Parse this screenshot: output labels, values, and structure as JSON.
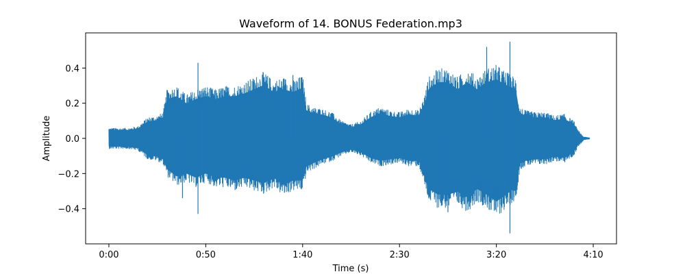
{
  "chart_data": {
    "type": "line",
    "title": "Waveform of 14. BONUS Federation.mp3",
    "xlabel": "Time (s)",
    "ylabel": "Amplitude",
    "xlim": [
      -12,
      262
    ],
    "ylim": [
      -0.6,
      0.6
    ],
    "grid": false,
    "x_ticks": [
      {
        "value": 0,
        "label": "0:00"
      },
      {
        "value": 50,
        "label": "0:50"
      },
      {
        "value": 100,
        "label": "1:40"
      },
      {
        "value": 150,
        "label": "2:30"
      },
      {
        "value": 200,
        "label": "3:20"
      },
      {
        "value": 250,
        "label": "4:10"
      }
    ],
    "y_ticks": [
      {
        "value": 0.4,
        "label": "0.4"
      },
      {
        "value": 0.2,
        "label": "0.2"
      },
      {
        "value": 0.0,
        "label": "0.0"
      },
      {
        "value": -0.2,
        "label": "−0.2"
      },
      {
        "value": -0.4,
        "label": "−0.4"
      }
    ],
    "series": [
      {
        "color": "#1f77b4",
        "x": [
          0,
          5,
          10,
          15,
          18,
          20,
          25,
          28,
          30,
          35,
          40,
          45,
          50,
          55,
          60,
          65,
          70,
          75,
          80,
          85,
          90,
          95,
          100,
          102,
          105,
          110,
          115,
          120,
          125,
          130,
          135,
          140,
          145,
          150,
          155,
          160,
          163,
          165,
          170,
          175,
          180,
          185,
          190,
          195,
          200,
          205,
          210,
          212,
          215,
          220,
          225,
          230,
          235,
          240,
          242,
          245,
          248
        ],
        "upper": [
          0.06,
          0.06,
          0.06,
          0.07,
          0.1,
          0.12,
          0.13,
          0.15,
          0.28,
          0.3,
          0.25,
          0.28,
          0.3,
          0.28,
          0.3,
          0.3,
          0.32,
          0.35,
          0.38,
          0.33,
          0.35,
          0.33,
          0.36,
          0.2,
          0.18,
          0.17,
          0.15,
          0.1,
          0.08,
          0.1,
          0.15,
          0.18,
          0.16,
          0.15,
          0.17,
          0.16,
          0.25,
          0.35,
          0.4,
          0.4,
          0.35,
          0.4,
          0.35,
          0.4,
          0.42,
          0.38,
          0.35,
          0.18,
          0.16,
          0.15,
          0.15,
          0.13,
          0.14,
          0.1,
          0.05,
          0.01,
          0.005
        ],
        "lower": [
          -0.06,
          -0.06,
          -0.06,
          -0.07,
          -0.1,
          -0.12,
          -0.13,
          -0.15,
          -0.22,
          -0.27,
          -0.25,
          -0.28,
          -0.25,
          -0.28,
          -0.28,
          -0.3,
          -0.28,
          -0.3,
          -0.32,
          -0.28,
          -0.33,
          -0.3,
          -0.3,
          -0.2,
          -0.18,
          -0.15,
          -0.13,
          -0.1,
          -0.08,
          -0.1,
          -0.14,
          -0.16,
          -0.15,
          -0.14,
          -0.16,
          -0.16,
          -0.28,
          -0.36,
          -0.4,
          -0.4,
          -0.38,
          -0.42,
          -0.36,
          -0.4,
          -0.45,
          -0.4,
          -0.35,
          -0.18,
          -0.16,
          -0.15,
          -0.15,
          -0.13,
          -0.14,
          -0.1,
          -0.05,
          -0.01,
          -0.005
        ],
        "spikes": [
          {
            "x": 46,
            "y": 0.43
          },
          {
            "x": 46,
            "y": -0.43
          },
          {
            "x": 95,
            "y": 0.36
          },
          {
            "x": 195,
            "y": 0.52
          },
          {
            "x": 207,
            "y": 0.55
          },
          {
            "x": 207,
            "y": -0.54
          },
          {
            "x": 175,
            "y": -0.42
          },
          {
            "x": 38,
            "y": -0.34
          }
        ]
      }
    ]
  }
}
